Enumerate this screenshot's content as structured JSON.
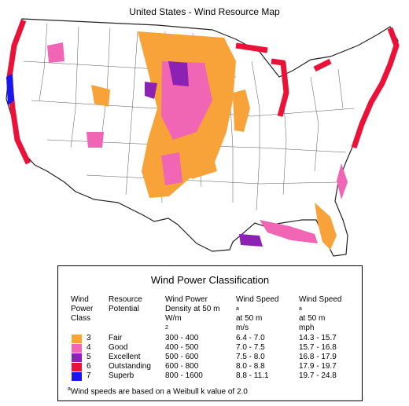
{
  "map_title": "United States - Wind Resource Map",
  "legend": {
    "title": "Wind Power Classification",
    "headers": {
      "class": [
        "Wind",
        "Power",
        "Class"
      ],
      "potential": [
        "Resource",
        "Potential"
      ],
      "density": [
        "Wind Power",
        "Density at 50 m",
        "W/m"
      ],
      "density_sup": "2",
      "speed_ms": [
        "Wind Speed",
        "at 50 m",
        "m/s"
      ],
      "speed_ms_sup": "a",
      "speed_mph": [
        "Wind Speed",
        "at 50 m",
        "mph"
      ],
      "speed_mph_sup": "a"
    },
    "rows": [
      {
        "class": "3",
        "potential": "Fair",
        "density": "300 -  400",
        "speed_ms": "6.4 -  7.0",
        "speed_mph": "14.3 - 15.7",
        "color": "#f7a33a"
      },
      {
        "class": "4",
        "potential": "Good",
        "density": "400 -  500",
        "speed_ms": "7.0 -  7.5",
        "speed_mph": "15.7 - 16.8",
        "color": "#f065b4"
      },
      {
        "class": "5",
        "potential": "Excellent",
        "density": "500 -  600",
        "speed_ms": "7.5 -  8.0",
        "speed_mph": "16.8 - 17.9",
        "color": "#8c22b4"
      },
      {
        "class": "6",
        "potential": "Outstanding",
        "density": "600 -  800",
        "speed_ms": "8.0 -  8.8",
        "speed_mph": "17.9 - 19.7",
        "color": "#ea1238"
      },
      {
        "class": "7",
        "potential": "Superb",
        "density": "800 - 1600",
        "speed_ms": "8.8 - 11.1",
        "speed_mph": "19.7 - 24.8",
        "color": "#1a16f0"
      }
    ],
    "footnote_mark": "a",
    "footnote": "Wind speeds are based on a Weibull k value of 2.0"
  }
}
